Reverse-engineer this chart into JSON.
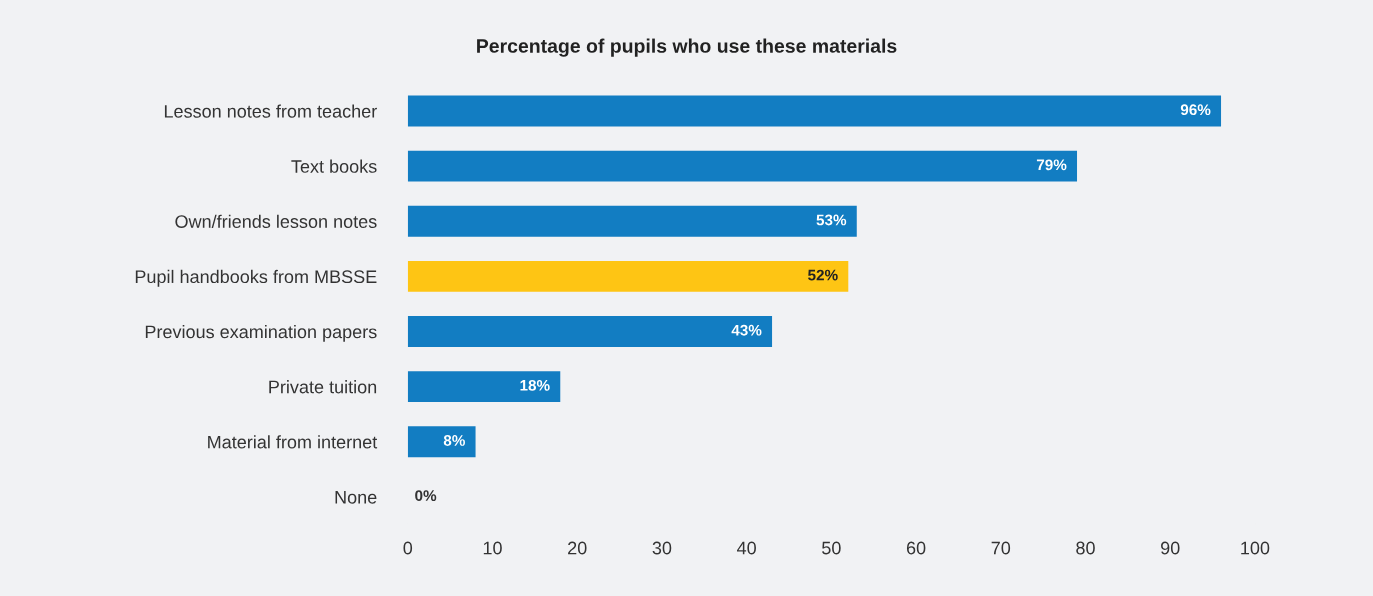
{
  "chart_data": {
    "type": "bar",
    "orientation": "horizontal",
    "title": "Percentage of pupils who use these materials",
    "categories": [
      "Lesson notes from teacher",
      "Text books",
      "Own/friends lesson notes",
      "Pupil handbooks from MBSSE",
      "Previous examination papers",
      "Private tuition",
      "Material from internet",
      "None"
    ],
    "values": [
      96,
      79,
      53,
      52,
      43,
      18,
      8,
      0
    ],
    "colors": [
      "#127dc2",
      "#127dc2",
      "#127dc2",
      "#fec514",
      "#127dc2",
      "#127dc2",
      "#127dc2",
      "#127dc2"
    ],
    "value_labels": [
      "96%",
      "79%",
      "53%",
      "52%",
      "43%",
      "18%",
      "8%",
      "0%"
    ],
    "xlim": [
      0,
      100
    ],
    "xticks": [
      0,
      10,
      20,
      30,
      40,
      50,
      60,
      70,
      80,
      90,
      100
    ],
    "grid": false,
    "legend": false
  }
}
